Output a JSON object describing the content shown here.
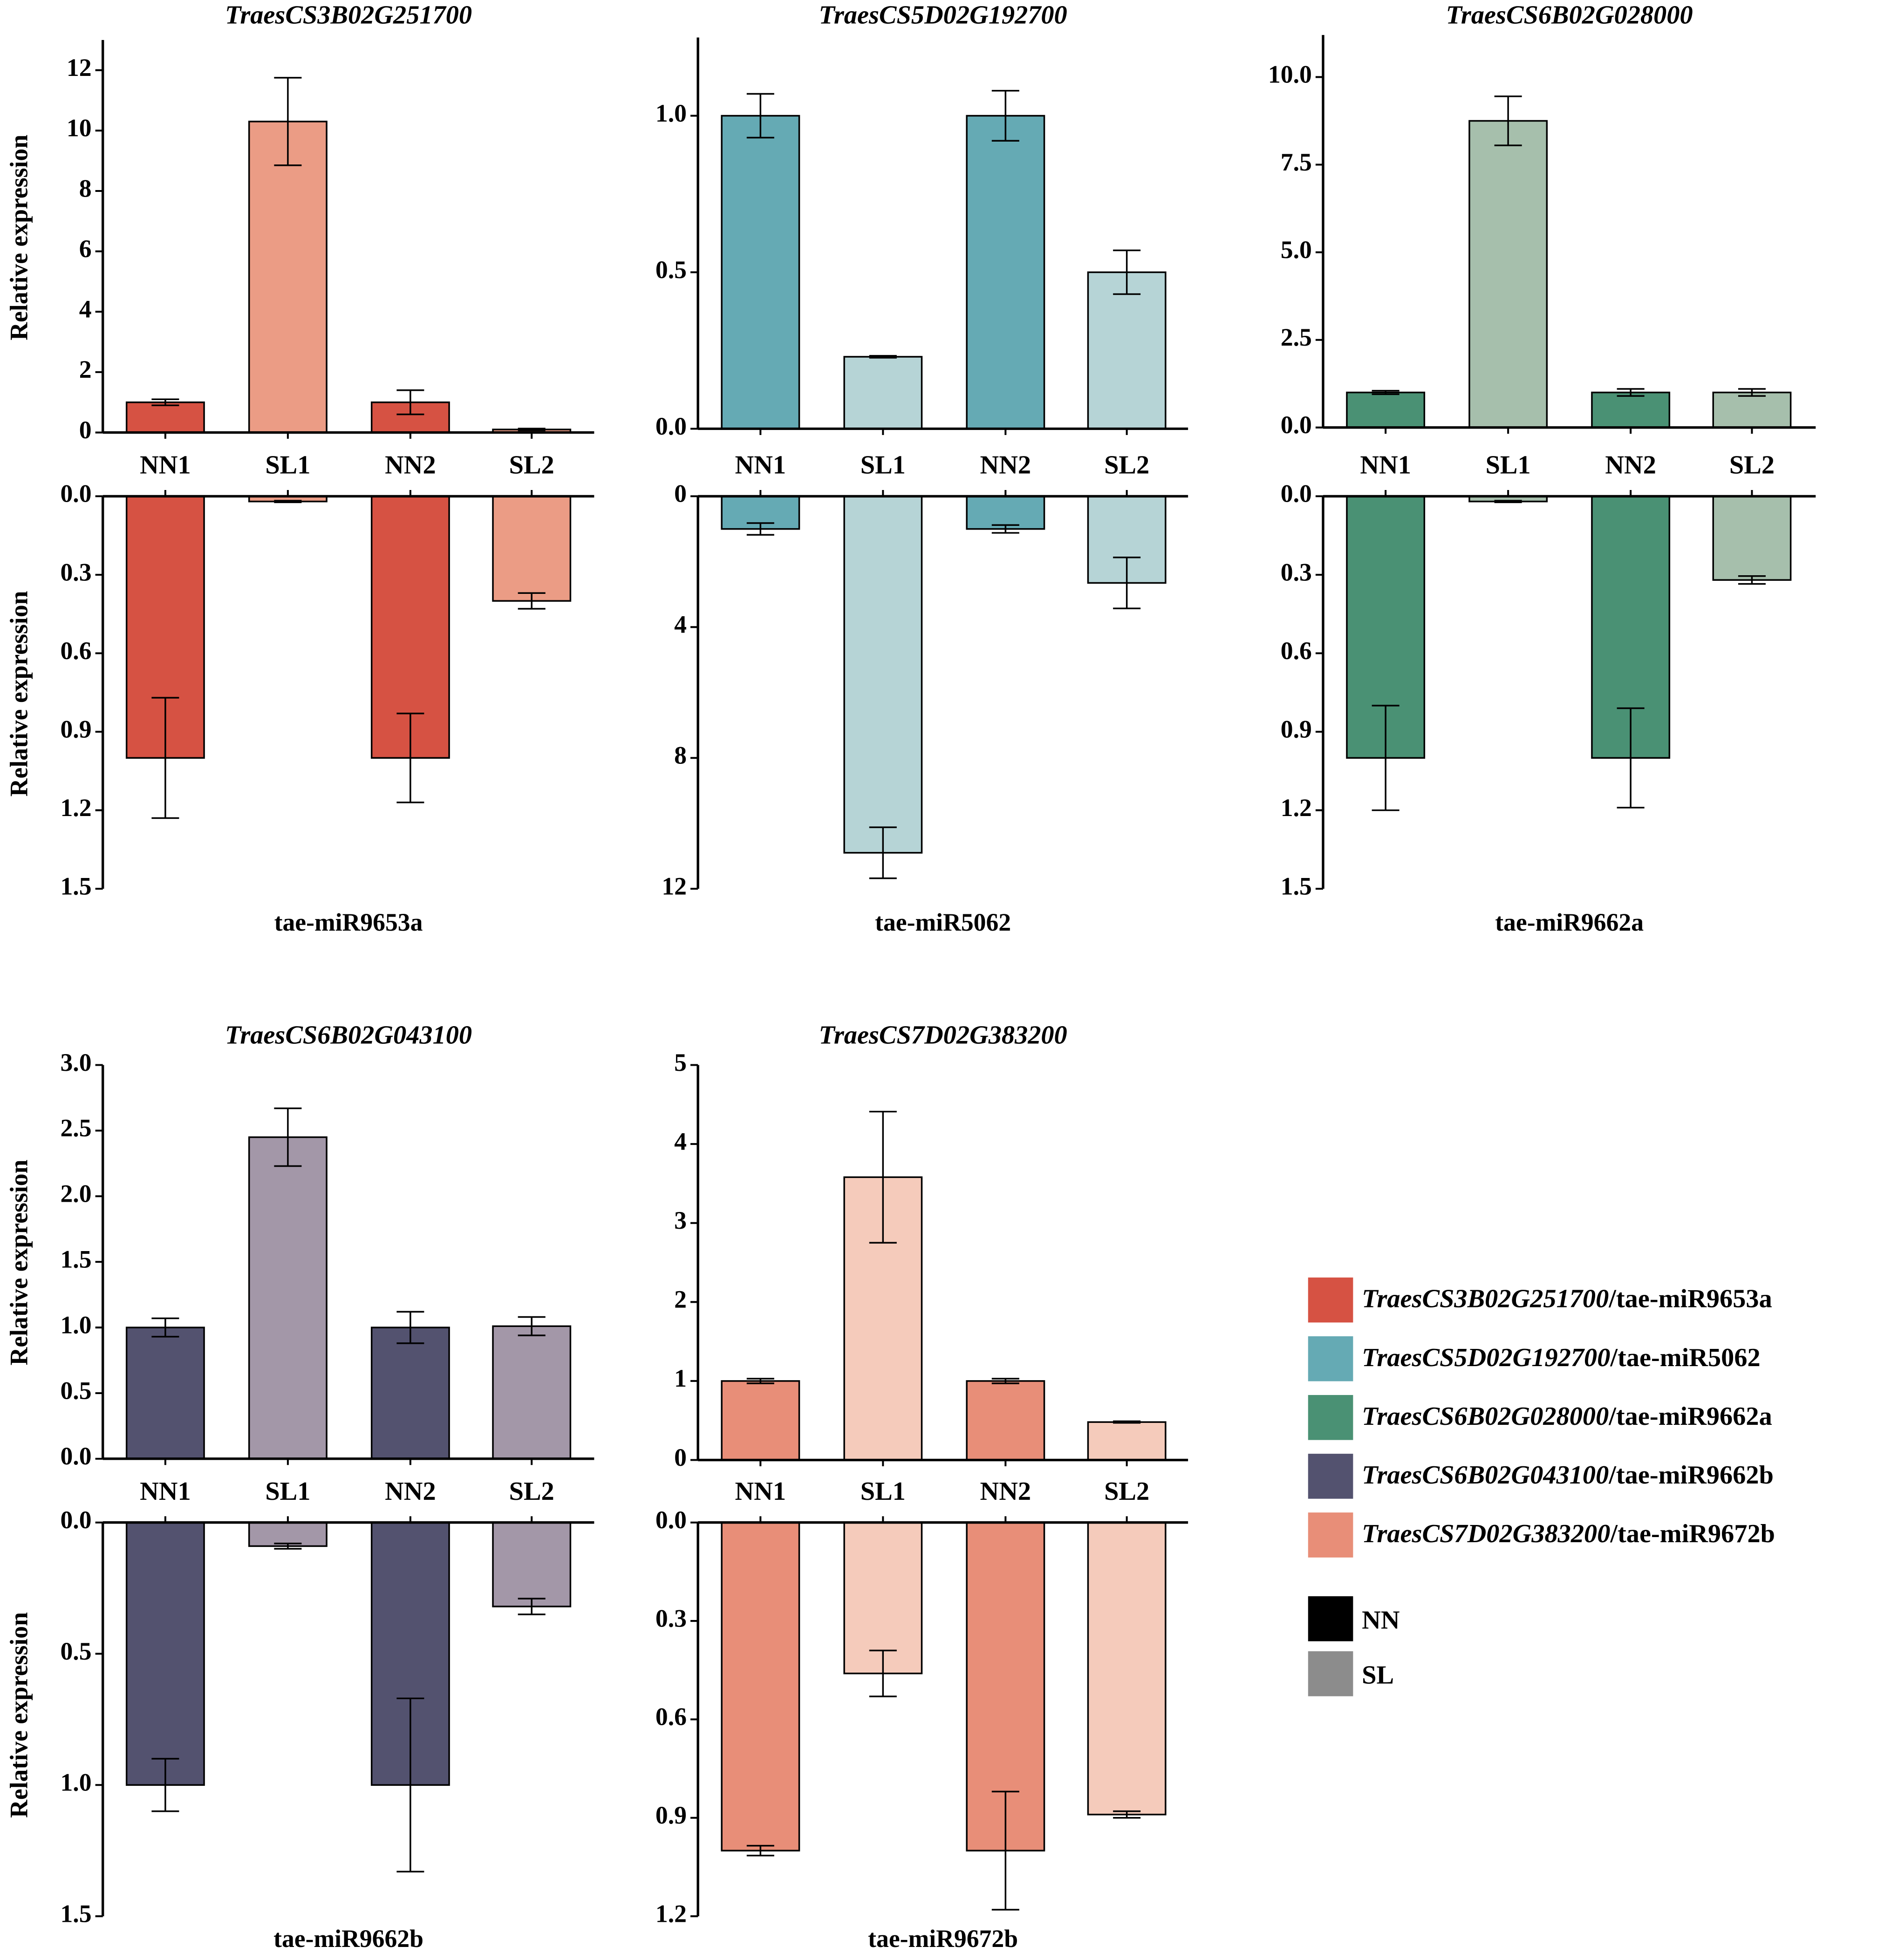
{
  "chart_data": [
    {
      "type": "bar",
      "title": "TraesCS3B02G251700",
      "ylabel": "Relative expression",
      "categories": [
        "NN1",
        "SL1",
        "NN2",
        "SL2"
      ],
      "colors": {
        "NN": "#D65243",
        "SL": "#EB9C85"
      },
      "top": {
        "values": [
          1.0,
          10.3,
          1.0,
          0.1
        ],
        "errors": [
          0.1,
          1.45,
          0.4,
          0.03
        ],
        "ylim": [
          0,
          13
        ],
        "ticks": [
          "0",
          "2",
          "4",
          "6",
          "8",
          "10",
          "12"
        ],
        "tick_values": [
          0,
          2,
          4,
          6,
          8,
          10,
          12
        ]
      },
      "bottom": {
        "label": "tae-miR9653a",
        "values": [
          1.0,
          0.02,
          1.0,
          0.4
        ],
        "errors": [
          0.23,
          0.003,
          0.17,
          0.03
        ],
        "ylim": [
          0,
          1.5
        ],
        "ticks": [
          "0.0",
          "0.3",
          "0.6",
          "0.9",
          "1.2",
          "1.5"
        ],
        "tick_values": [
          0,
          0.3,
          0.6,
          0.9,
          1.2,
          1.5
        ]
      }
    },
    {
      "type": "bar",
      "title": "TraesCS5D02G192700",
      "ylabel": "",
      "categories": [
        "NN1",
        "SL1",
        "NN2",
        "SL2"
      ],
      "colors": {
        "NN": "#65AAB4",
        "SL": "#B6D4D6"
      },
      "top": {
        "values": [
          1.0,
          0.23,
          1.0,
          0.5
        ],
        "errors": [
          0.07,
          0.003,
          0.08,
          0.07
        ],
        "ylim": [
          0,
          1.25
        ],
        "ticks": [
          "0.0",
          "0.5",
          "1.0"
        ],
        "tick_values": [
          0,
          0.5,
          1.0
        ]
      },
      "bottom": {
        "label": "tae-miR5062",
        "values": [
          1.0,
          10.9,
          1.0,
          2.65
        ],
        "errors": [
          0.18,
          0.78,
          0.12,
          0.78
        ],
        "ylim": [
          0,
          12
        ],
        "ticks": [
          "0",
          "4",
          "8",
          "12"
        ],
        "tick_values": [
          0,
          4,
          8,
          12
        ]
      }
    },
    {
      "type": "bar",
      "title": "TraesCS6B02G028000",
      "ylabel": "",
      "categories": [
        "NN1",
        "SL1",
        "NN2",
        "SL2"
      ],
      "colors": {
        "NN": "#4A9174",
        "SL": "#A6BFAC"
      },
      "top": {
        "values": [
          1.0,
          8.75,
          1.0,
          1.0
        ],
        "errors": [
          0.05,
          0.7,
          0.1,
          0.1
        ],
        "ylim": [
          0,
          11.2
        ],
        "ticks": [
          "0.0",
          "2.5",
          "5.0",
          "7.5",
          "10.0"
        ],
        "tick_values": [
          0,
          2.5,
          5,
          7.5,
          10
        ]
      },
      "bottom": {
        "label": "tae-miR9662a",
        "values": [
          1.0,
          0.02,
          1.0,
          0.32
        ],
        "errors": [
          0.2,
          0.003,
          0.19,
          0.015
        ],
        "ylim": [
          0,
          1.5
        ],
        "ticks": [
          "0.0",
          "0.3",
          "0.6",
          "0.9",
          "1.2",
          "1.5"
        ],
        "tick_values": [
          0,
          0.3,
          0.6,
          0.9,
          1.2,
          1.5
        ]
      }
    },
    {
      "type": "bar",
      "title": "TraesCS6B02G043100",
      "ylabel": "Relative expression",
      "categories": [
        "NN1",
        "SL1",
        "NN2",
        "SL2"
      ],
      "colors": {
        "NN": "#53526F",
        "SL": "#A397A8"
      },
      "top": {
        "values": [
          1.0,
          2.45,
          1.0,
          1.01
        ],
        "errors": [
          0.07,
          0.22,
          0.12,
          0.07
        ],
        "ylim": [
          0,
          3.0
        ],
        "ticks": [
          "0.0",
          "0.5",
          "1.0",
          "1.5",
          "2.0",
          "2.5",
          "3.0"
        ],
        "tick_values": [
          0,
          0.5,
          1,
          1.5,
          2,
          2.5,
          3
        ]
      },
      "bottom": {
        "label": "tae-miR9662b",
        "values": [
          1.0,
          0.09,
          1.0,
          0.32
        ],
        "errors": [
          0.1,
          0.01,
          0.33,
          0.03
        ],
        "ylim": [
          0,
          1.5
        ],
        "ticks": [
          "0.0",
          "0.5",
          "1.0",
          "1.5"
        ],
        "tick_values": [
          0,
          0.5,
          1,
          1.5
        ]
      }
    },
    {
      "type": "bar",
      "title": "TraesCS7D02G383200",
      "ylabel": "",
      "categories": [
        "NN1",
        "SL1",
        "NN2",
        "SL2"
      ],
      "colors": {
        "NN": "#E88E78",
        "SL": "#F5CBBB"
      },
      "top": {
        "values": [
          1.0,
          3.58,
          1.0,
          0.48
        ],
        "errors": [
          0.03,
          0.83,
          0.03,
          0.01
        ],
        "ylim": [
          0,
          5
        ],
        "ticks": [
          "0",
          "1",
          "2",
          "3",
          "4",
          "5"
        ],
        "tick_values": [
          0,
          1,
          2,
          3,
          4,
          5
        ]
      },
      "bottom": {
        "label": "tae-miR9672b",
        "values": [
          1.0,
          0.46,
          1.0,
          0.89
        ],
        "errors": [
          0.015,
          0.07,
          0.18,
          0.01
        ],
        "ylim": [
          0,
          1.2
        ],
        "ticks": [
          "0.0",
          "0.3",
          "0.6",
          "0.9",
          "1.2"
        ],
        "tick_values": [
          0,
          0.3,
          0.6,
          0.9,
          1.2
        ]
      }
    }
  ],
  "legend": {
    "pairs": [
      {
        "gene": "TraesCS3B02G251700",
        "mirna": "/tae-miR9653a",
        "color": "#D65243"
      },
      {
        "gene": "TraesCS5D02G192700",
        "mirna": "/tae-miR5062",
        "color": "#65AAB4"
      },
      {
        "gene": "TraesCS6B02G028000",
        "mirna": "/tae-miR9662a",
        "color": "#4A9174"
      },
      {
        "gene": "TraesCS6B02G043100",
        "mirna": "/tae-miR9662b",
        "color": "#53526F"
      },
      {
        "gene": "TraesCS7D02G383200",
        "mirna": "/tae-miR9672b",
        "color": "#E88E78"
      }
    ],
    "groups": [
      {
        "label": "NN",
        "color": "#000000"
      },
      {
        "label": "SL",
        "color": "#8C8C8C"
      }
    ]
  }
}
